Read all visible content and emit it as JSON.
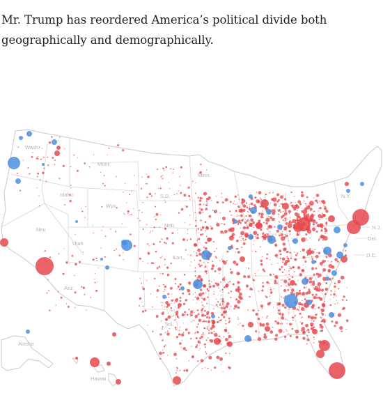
{
  "caption": "Mr. Trump has reordered America’s political divide both geographically and demographically.",
  "map": {
    "colors": {
      "republican_shift": "#e5484d",
      "democratic_shift": "#4a8fe0"
    },
    "state_labels": {
      "wash": "Wash.",
      "mont": "Mont.",
      "idaho": "Idaho",
      "wyo": "Wyo.",
      "nev": "Nev.",
      "utah": "Utah",
      "ariz": "Ariz.",
      "sd": "S.D.",
      "minn": "Minn.",
      "neb": "Neb.",
      "kan": "Kan.",
      "tex": "Tex.",
      "ny": "N.Y.",
      "nj": "N.J.",
      "del": "Del.",
      "dc": "D.C.",
      "alaska": "Alaska",
      "hawaii": "Hawaii"
    }
  }
}
